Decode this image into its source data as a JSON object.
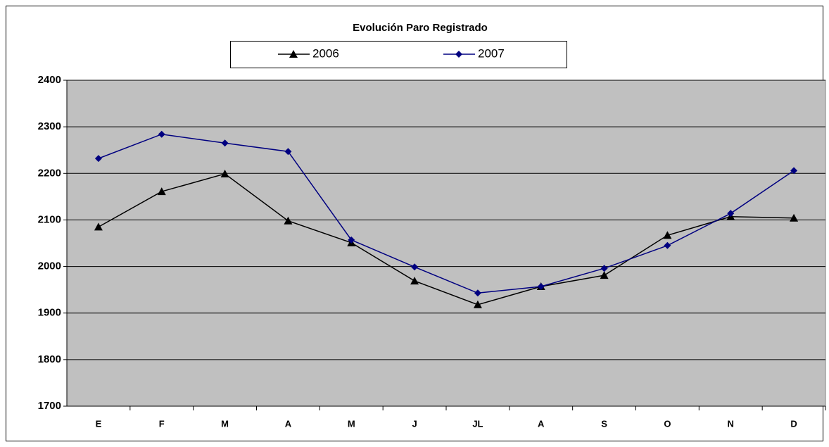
{
  "chart_data": {
    "type": "line",
    "title": "Evolución Paro Registrado",
    "categories": [
      "E",
      "F",
      "M",
      "A",
      "M",
      "J",
      "JL",
      "A",
      "S",
      "O",
      "N",
      "D"
    ],
    "series": [
      {
        "name": "2006",
        "color": "#000000",
        "marker": "triangle",
        "values": [
          2085,
          2161,
          2199,
          2098,
          2051,
          1969,
          1918,
          1957,
          1981,
          2067,
          2107,
          2104
        ]
      },
      {
        "name": "2007",
        "color": "#000080",
        "marker": "diamond",
        "values": [
          2232,
          2284,
          2265,
          2247,
          2057,
          1999,
          1943,
          1957,
          1996,
          2045,
          2114,
          2206
        ]
      }
    ],
    "ylim": [
      1700,
      2400
    ],
    "yticks": [
      1700,
      1800,
      1900,
      2000,
      2100,
      2200,
      2300,
      2400
    ],
    "grid": true
  }
}
